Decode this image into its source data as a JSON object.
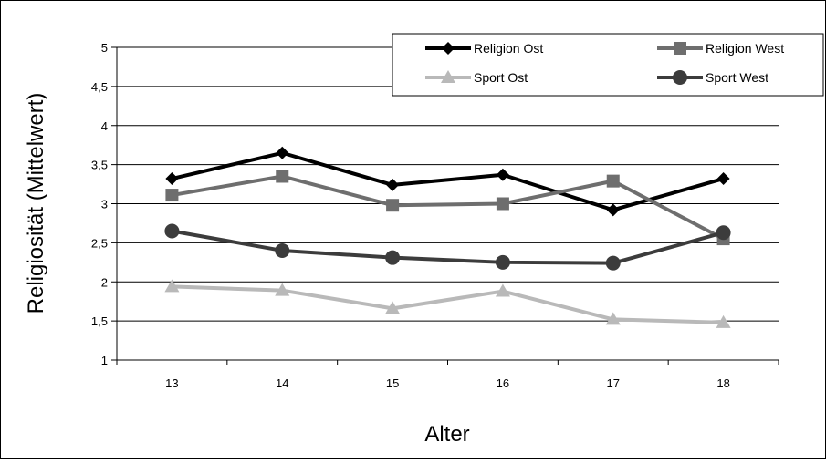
{
  "chart_data": {
    "type": "line",
    "title": "",
    "xlabel": "Alter",
    "ylabel": "Religiosität (Mittelwert)",
    "categories": [
      "13",
      "14",
      "15",
      "16",
      "17",
      "18"
    ],
    "ylim": [
      1,
      5
    ],
    "yticks": [
      "1",
      "1,5",
      "2",
      "2,5",
      "3",
      "3,5",
      "4",
      "4,5",
      "5"
    ],
    "grid": true,
    "legend_position": "top-right",
    "series": [
      {
        "name": "Religion Ost",
        "values": [
          3.32,
          3.65,
          3.24,
          3.37,
          2.92,
          3.32
        ],
        "color": "#000000",
        "marker": "diamond"
      },
      {
        "name": "Religion West",
        "values": [
          3.11,
          3.35,
          2.98,
          3.0,
          3.29,
          2.55
        ],
        "color": "#6e6e6e",
        "marker": "square"
      },
      {
        "name": "Sport Ost",
        "values": [
          1.94,
          1.89,
          1.66,
          1.88,
          1.52,
          1.48
        ],
        "color": "#b9b9b9",
        "marker": "triangle"
      },
      {
        "name": "Sport West",
        "values": [
          2.65,
          2.4,
          2.31,
          2.25,
          2.24,
          2.63
        ],
        "color": "#3c3c3c",
        "marker": "circle"
      }
    ]
  }
}
